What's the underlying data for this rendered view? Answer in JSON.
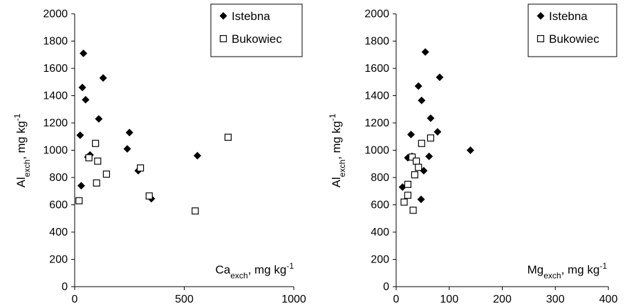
{
  "chart_data": [
    {
      "type": "scatter",
      "xlabel": {
        "base": "Ca",
        "sub": "exch",
        "unit": ", mg kg",
        "sup": "-1"
      },
      "ylabel": {
        "base": "Al",
        "sub": "exch",
        "unit": ", mg kg",
        "sup": "-1"
      },
      "xlim": [
        0,
        1000
      ],
      "ylim": [
        0,
        2000
      ],
      "xticks": [
        "0",
        "500",
        "1000"
      ],
      "yticks": [
        "0",
        "200",
        "400",
        "600",
        "800",
        "1000",
        "1200",
        "1400",
        "1600",
        "1800",
        "2000"
      ],
      "grid": false,
      "legend_position": "top-right",
      "series": [
        {
          "name": "Istebna",
          "marker": "filled-diamond",
          "color": "#000000",
          "points": [
            [
              25,
              1110
            ],
            [
              30,
              740
            ],
            [
              35,
              1460
            ],
            [
              40,
              1710
            ],
            [
              50,
              1370
            ],
            [
              60,
              950
            ],
            [
              70,
              965
            ],
            [
              110,
              1230
            ],
            [
              130,
              1530
            ],
            [
              240,
              1010
            ],
            [
              250,
              1130
            ],
            [
              290,
              850
            ],
            [
              350,
              645
            ],
            [
              560,
              960
            ]
          ]
        },
        {
          "name": "Bukowiec",
          "marker": "hollow-square",
          "color": "#000000",
          "points": [
            [
              20,
              630
            ],
            [
              65,
              945
            ],
            [
              95,
              1050
            ],
            [
              105,
              920
            ],
            [
              100,
              760
            ],
            [
              145,
              825
            ],
            [
              300,
              870
            ],
            [
              340,
              665
            ],
            [
              550,
              555
            ],
            [
              700,
              1095
            ]
          ]
        }
      ]
    },
    {
      "type": "scatter",
      "xlabel": {
        "base": "Mg",
        "sub": "exch",
        "unit": ", mg kg",
        "sup": "-1"
      },
      "ylabel": {
        "base": "Al",
        "sub": "exch",
        "unit": ", mg kg",
        "sup": "-1"
      },
      "xlim": [
        0,
        400
      ],
      "ylim": [
        0,
        2000
      ],
      "xticks": [
        "0",
        "100",
        "200",
        "300",
        "400"
      ],
      "yticks": [
        "0",
        "200",
        "400",
        "600",
        "800",
        "1000",
        "1200",
        "1400",
        "1600",
        "1800",
        "2000"
      ],
      "grid": false,
      "legend_position": "top-right",
      "series": [
        {
          "name": "Istebna",
          "marker": "filled-diamond",
          "color": "#000000",
          "points": [
            [
              12,
              730
            ],
            [
              22,
              945
            ],
            [
              28,
              1115
            ],
            [
              30,
              955
            ],
            [
              42,
              1470
            ],
            [
              47,
              640
            ],
            [
              48,
              1365
            ],
            [
              52,
              850
            ],
            [
              55,
              1720
            ],
            [
              62,
              955
            ],
            [
              65,
              1235
            ],
            [
              78,
              1135
            ],
            [
              82,
              1535
            ],
            [
              140,
              1000
            ]
          ]
        },
        {
          "name": "Bukowiec",
          "marker": "hollow-square",
          "color": "#000000",
          "points": [
            [
              15,
              620
            ],
            [
              22,
              670
            ],
            [
              22,
              750
            ],
            [
              30,
              950
            ],
            [
              32,
              560
            ],
            [
              35,
              820
            ],
            [
              38,
              920
            ],
            [
              42,
              875
            ],
            [
              48,
              1050
            ],
            [
              65,
              1090
            ]
          ]
        }
      ]
    }
  ]
}
